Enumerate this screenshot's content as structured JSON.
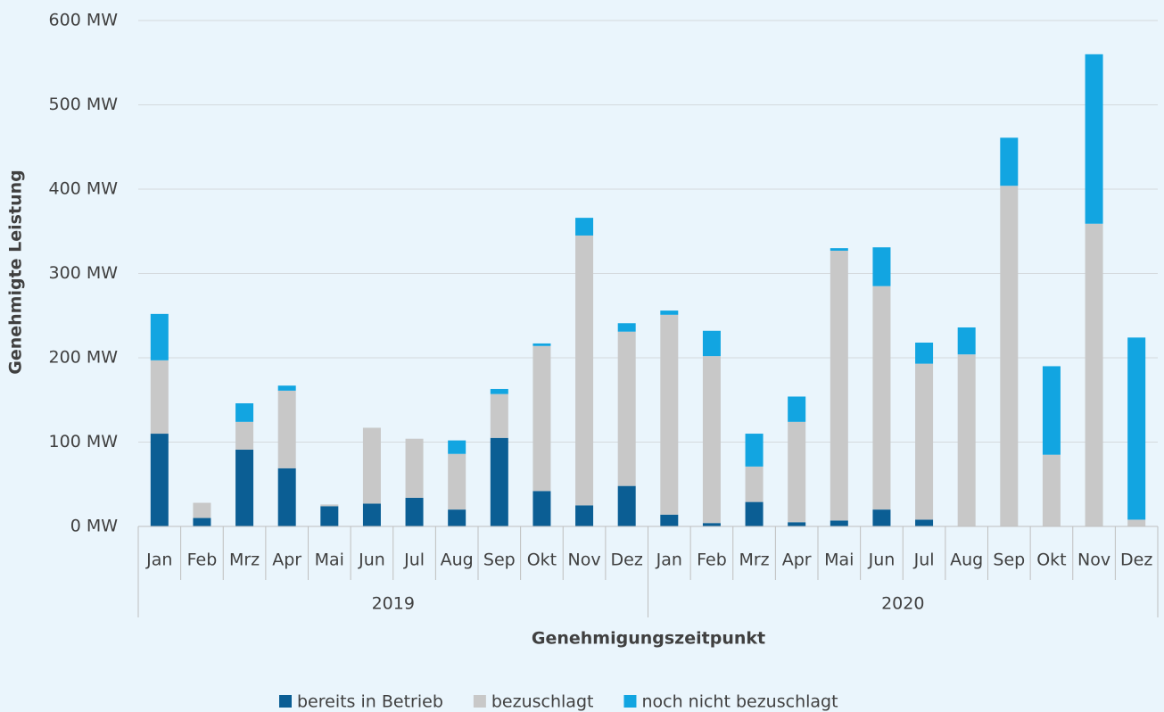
{
  "chart_data": {
    "type": "stacked_bar",
    "y_label": "Genehmigte Leistung",
    "x_label": "Genehmigungszeitpunkt",
    "groups": [
      {
        "label": "2019",
        "categories": [
          "Jan",
          "Feb",
          "Mrz",
          "Apr",
          "Mai",
          "Jun",
          "Jul",
          "Aug",
          "Sep",
          "Okt",
          "Nov",
          "Dez"
        ]
      },
      {
        "label": "2020",
        "categories": [
          "Jan",
          "Feb",
          "Mrz",
          "Apr",
          "Mai",
          "Jun",
          "Jul",
          "Aug",
          "Sep",
          "Okt",
          "Nov",
          "Dez"
        ]
      }
    ],
    "series": [
      {
        "name": "bereits in Betrieb",
        "color": "#0b5e94",
        "values": [
          110,
          10,
          91,
          69,
          24,
          27,
          34,
          20,
          105,
          42,
          25,
          48,
          14,
          4,
          29,
          5,
          7,
          20,
          8,
          0,
          0,
          0,
          0,
          0
        ]
      },
      {
        "name": "bezuschlagt",
        "color": "#c8c8c8",
        "values": [
          87,
          18,
          33,
          92,
          2,
          90,
          70,
          66,
          52,
          172,
          320,
          183,
          237,
          198,
          42,
          119,
          320,
          265,
          185,
          204,
          404,
          85,
          359,
          8
        ]
      },
      {
        "name": "noch nicht bezuschlagt",
        "color": "#12a5e1",
        "values": [
          55,
          0,
          22,
          6,
          0,
          0,
          0,
          16,
          6,
          3,
          21,
          10,
          5,
          30,
          39,
          30,
          3,
          46,
          25,
          32,
          57,
          105,
          201,
          216
        ]
      }
    ],
    "ylim": [
      0,
      600
    ],
    "yticks": [
      {
        "value": 0,
        "label": "0 MW"
      },
      {
        "value": 100,
        "label": "100 MW"
      },
      {
        "value": 200,
        "label": "200 MW"
      },
      {
        "value": 300,
        "label": "300 MW"
      },
      {
        "value": 400,
        "label": "400 MW"
      },
      {
        "value": 500,
        "label": "500 MW"
      },
      {
        "value": 600,
        "label": "600 MW"
      }
    ],
    "grid": true,
    "legend": "bottom"
  }
}
